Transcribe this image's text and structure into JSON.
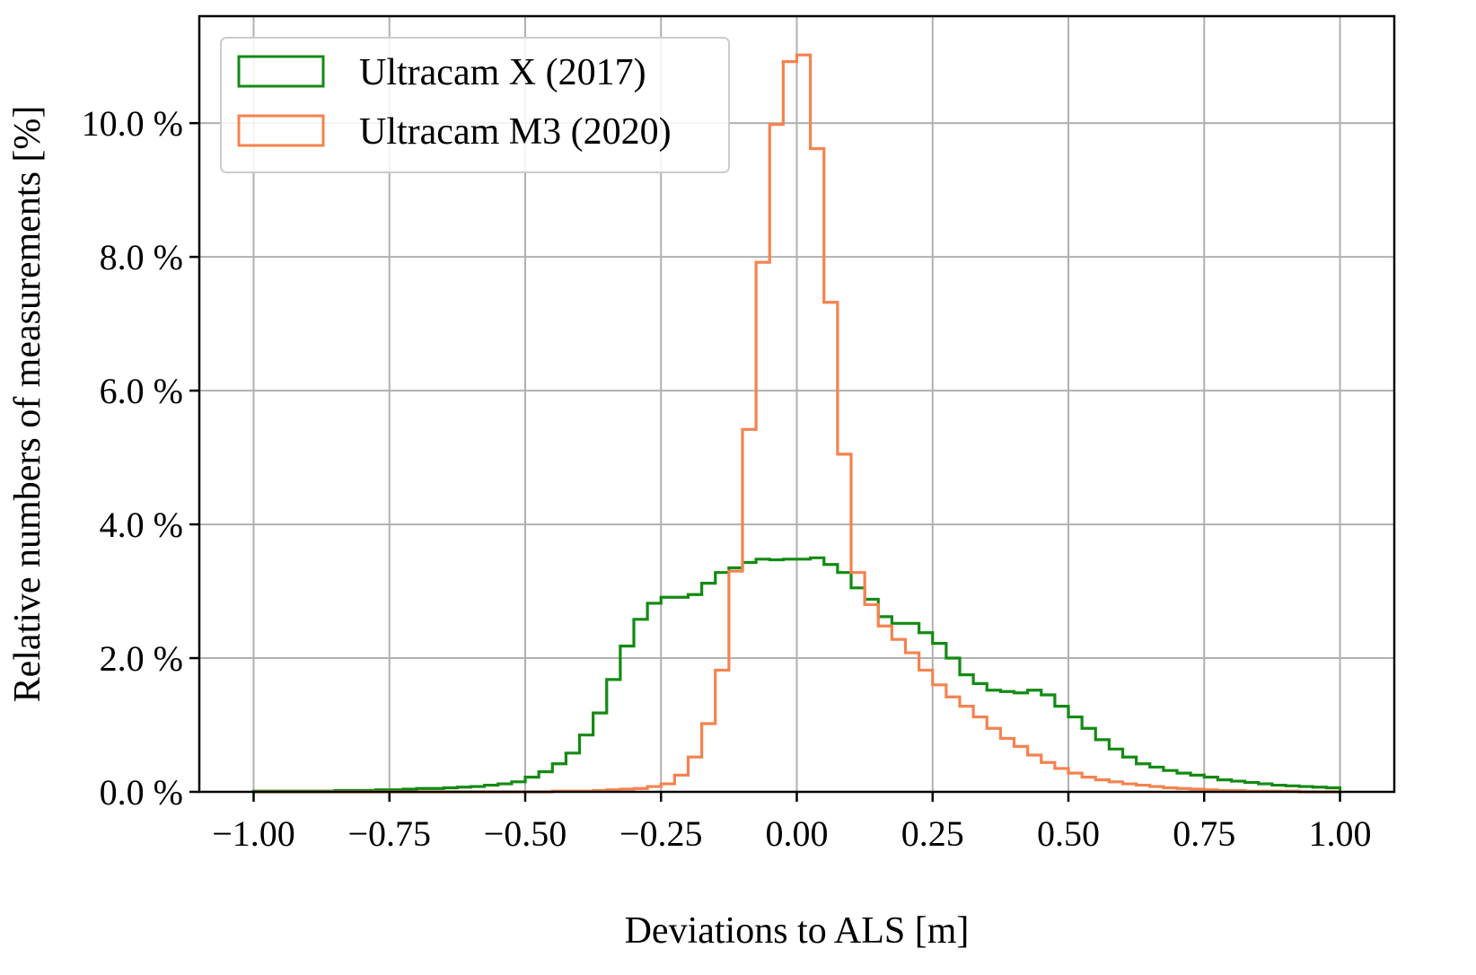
{
  "chart_data": {
    "type": "histogram",
    "xlabel": "Deviations to ALS [m]",
    "ylabel": "Relative numbers of measurements [%]",
    "xlim": [
      -1.1,
      1.1
    ],
    "ylim": [
      0,
      11.6
    ],
    "x_ticks": [
      -1.0,
      -0.75,
      -0.5,
      -0.25,
      0.0,
      0.25,
      0.5,
      0.75,
      1.0
    ],
    "x_tick_labels": [
      "−1.00",
      "−0.75",
      "−0.50",
      "−0.25",
      "0.00",
      "0.25",
      "0.50",
      "0.75",
      "1.00"
    ],
    "y_ticks": [
      0,
      2,
      4,
      6,
      8,
      10
    ],
    "y_tick_labels": [
      "0.0 %",
      "2.0 %",
      "4.0 %",
      "6.0 %",
      "8.0 %",
      "10.0 %"
    ],
    "grid": true,
    "legend_position": "upper-left",
    "bin_edges": [
      -1.0,
      -0.975,
      -0.95,
      -0.925,
      -0.9,
      -0.875,
      -0.85,
      -0.825,
      -0.8,
      -0.775,
      -0.75,
      -0.725,
      -0.7,
      -0.675,
      -0.65,
      -0.625,
      -0.6,
      -0.575,
      -0.55,
      -0.525,
      -0.5,
      -0.475,
      -0.45,
      -0.425,
      -0.4,
      -0.375,
      -0.35,
      -0.325,
      -0.3,
      -0.275,
      -0.25,
      -0.225,
      -0.2,
      -0.175,
      -0.15,
      -0.125,
      -0.1,
      -0.075,
      -0.05,
      -0.025,
      0.0,
      0.025,
      0.05,
      0.075,
      0.1,
      0.125,
      0.15,
      0.175,
      0.2,
      0.225,
      0.25,
      0.275,
      0.3,
      0.325,
      0.35,
      0.375,
      0.4,
      0.425,
      0.45,
      0.475,
      0.5,
      0.525,
      0.55,
      0.575,
      0.6,
      0.625,
      0.65,
      0.675,
      0.7,
      0.725,
      0.75,
      0.775,
      0.8,
      0.825,
      0.85,
      0.875,
      0.9,
      0.925,
      0.95,
      0.975,
      1.0
    ],
    "series": [
      {
        "name": "Ultracam X (2017)",
        "color": "#138a13",
        "values": [
          0.01,
          0.01,
          0.01,
          0.01,
          0.01,
          0.01,
          0.02,
          0.02,
          0.02,
          0.03,
          0.03,
          0.04,
          0.05,
          0.05,
          0.06,
          0.07,
          0.08,
          0.1,
          0.12,
          0.15,
          0.22,
          0.3,
          0.42,
          0.58,
          0.85,
          1.18,
          1.68,
          2.18,
          2.58,
          2.82,
          2.91,
          2.91,
          2.95,
          3.12,
          3.28,
          3.35,
          3.43,
          3.48,
          3.47,
          3.48,
          3.48,
          3.5,
          3.4,
          3.28,
          3.05,
          2.88,
          2.62,
          2.52,
          2.52,
          2.38,
          2.22,
          2.0,
          1.75,
          1.62,
          1.52,
          1.5,
          1.48,
          1.52,
          1.45,
          1.28,
          1.12,
          0.95,
          0.78,
          0.64,
          0.52,
          0.42,
          0.37,
          0.32,
          0.28,
          0.25,
          0.22,
          0.18,
          0.16,
          0.14,
          0.12,
          0.1,
          0.09,
          0.08,
          0.07,
          0.06
        ]
      },
      {
        "name": "Ultracam M3 (2020)",
        "color": "#f5824f",
        "values": [
          0.0,
          0.0,
          0.0,
          0.0,
          0.0,
          0.0,
          0.0,
          0.0,
          0.0,
          0.0,
          0.0,
          0.0,
          0.0,
          0.0,
          0.0,
          0.0,
          0.0,
          0.0,
          0.0,
          0.0,
          0.0,
          0.0,
          0.01,
          0.01,
          0.01,
          0.02,
          0.03,
          0.04,
          0.05,
          0.08,
          0.12,
          0.25,
          0.52,
          1.02,
          1.82,
          3.3,
          5.42,
          7.92,
          9.98,
          10.92,
          11.02,
          9.62,
          7.32,
          5.05,
          3.28,
          2.8,
          2.48,
          2.28,
          2.08,
          1.82,
          1.6,
          1.42,
          1.28,
          1.12,
          0.95,
          0.8,
          0.68,
          0.55,
          0.44,
          0.35,
          0.28,
          0.22,
          0.18,
          0.15,
          0.12,
          0.1,
          0.08,
          0.06,
          0.05,
          0.04,
          0.03,
          0.02,
          0.02,
          0.01,
          0.01,
          0.01,
          0.01,
          0.0,
          0.0,
          0.0
        ]
      }
    ]
  }
}
